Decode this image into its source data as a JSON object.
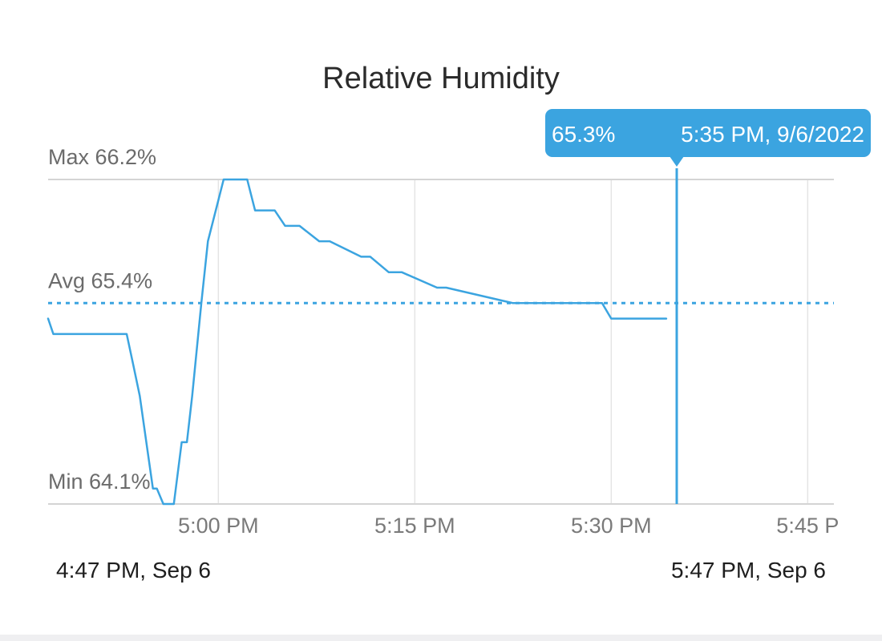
{
  "chart_data": {
    "type": "line",
    "title": "Relative Humidity",
    "xlabel": "",
    "ylabel": "",
    "xlim": [
      "4:47 PM",
      "5:47 PM"
    ],
    "ylim": [
      64.1,
      66.2
    ],
    "grid": {
      "vertical": true,
      "horizontal": false
    },
    "x_ticks": [
      "5:00 PM",
      "5:15 PM",
      "5:30 PM",
      "5:45 P"
    ],
    "x_tick_minutes": [
      780,
      795,
      810,
      825
    ],
    "range": {
      "start": "4:47 PM,  Sep 6",
      "end": "5:47 PM,  Sep 6"
    },
    "references": [
      {
        "label": "Max 66.2%",
        "value": 66.2,
        "style": "solid"
      },
      {
        "label": "Avg 65.4%",
        "value": 65.4,
        "style": "dotted"
      },
      {
        "label": "Min 64.1%",
        "value": 64.1,
        "style": "solid"
      }
    ],
    "series": [
      {
        "x_minutes": [
          767.0,
          767.4,
          768.0,
          773.0,
          773.5,
          774.0,
          774.5,
          775.0,
          775.3,
          775.8,
          776.6,
          777.2,
          777.6,
          778.0,
          778.7,
          779.2,
          779.8,
          780.4,
          781.1,
          782.2,
          782.8,
          784.3,
          785.1,
          786.2,
          787.7,
          788.5,
          790.9,
          791.6,
          793.0,
          794.0,
          796.7,
          797.4,
          802.5,
          803.0,
          809.3,
          810.0,
          814.2
        ],
        "y": [
          65.3,
          65.2,
          65.2,
          65.2,
          65.0,
          64.8,
          64.5,
          64.2,
          64.2,
          64.1,
          64.1,
          64.5,
          64.5,
          64.8,
          65.4,
          65.8,
          66.0,
          66.2,
          66.2,
          66.2,
          66.0,
          66.0,
          65.9,
          65.9,
          65.8,
          65.8,
          65.7,
          65.7,
          65.6,
          65.6,
          65.5,
          65.5,
          65.4,
          65.4,
          65.4,
          65.3,
          65.3
        ],
        "color": "#3ba4e0"
      }
    ],
    "cursor": {
      "x_minutes": 815,
      "value_label": "65.3%",
      "time_label": "5:35 PM,  9/6/2022"
    }
  }
}
